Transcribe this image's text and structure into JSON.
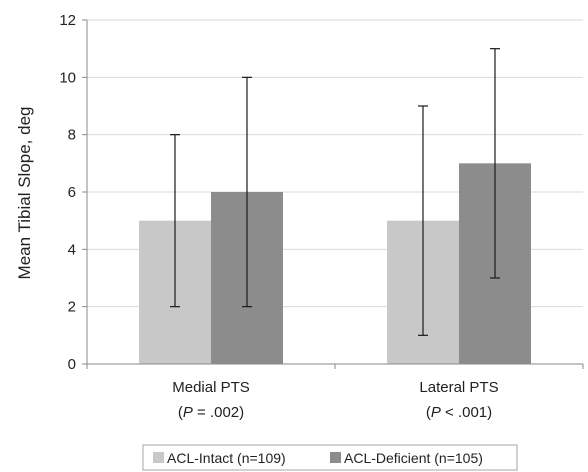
{
  "chart_data": {
    "type": "bar",
    "categories": [
      "Medial PTS",
      "Lateral PTS"
    ],
    "category_subtitles": [
      {
        "p_symbol": "P",
        "p_rest": " = .002"
      },
      {
        "p_symbol": "P",
        "p_rest": " < .001"
      }
    ],
    "series": [
      {
        "name": "ACL-Intact (n=109)",
        "values": [
          5,
          5
        ],
        "error_low": [
          2,
          1
        ],
        "error_high": [
          8,
          9
        ],
        "color": "#c8c8c8"
      },
      {
        "name": "ACL-Deficient (n=105)",
        "values": [
          6,
          7
        ],
        "error_low": [
          2,
          3
        ],
        "error_high": [
          10,
          11
        ],
        "color": "#8c8c8c"
      }
    ],
    "xlabel": "",
    "ylabel": "Mean Tibial Slope, deg",
    "ylim": [
      0,
      12
    ],
    "yticks": [
      "0",
      "2",
      "4",
      "6",
      "8",
      "10",
      "12"
    ],
    "grid": "horizontal",
    "legend_position": "bottom"
  }
}
